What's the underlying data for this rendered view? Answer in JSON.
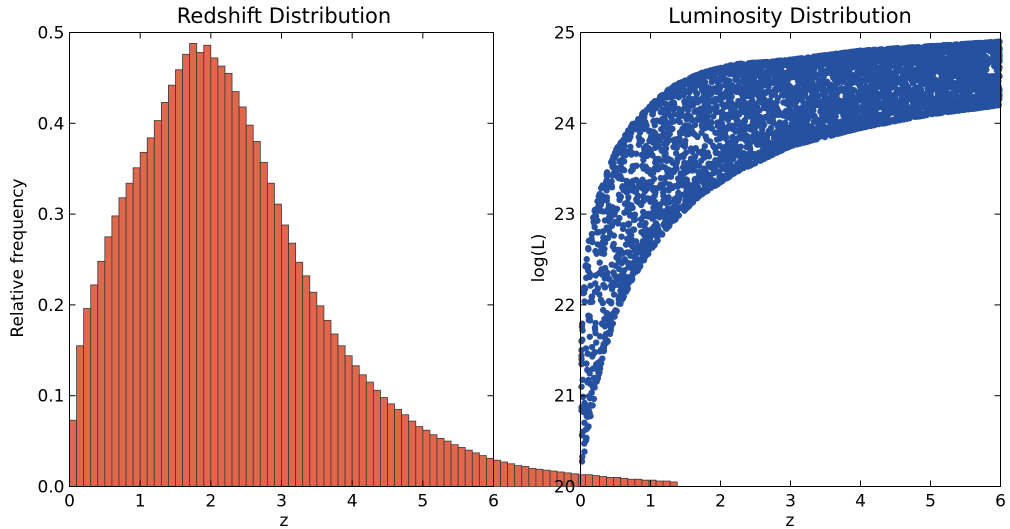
{
  "chart_data": [
    {
      "type": "bar",
      "title": "Redshift Distribution",
      "xlabel": "z",
      "ylabel": "Relative frequency",
      "xlim": [
        0,
        6
      ],
      "ylim": [
        0,
        0.5
      ],
      "xticks": [
        "0",
        "1",
        "2",
        "3",
        "4",
        "5",
        "6"
      ],
      "yticks": [
        "0.0",
        "0.1",
        "0.2",
        "0.3",
        "0.4",
        "0.5"
      ],
      "grid": false,
      "bar_color": "#E0674B",
      "bin_edges_start": 0,
      "bin_width": 0.1,
      "values": [
        0.073,
        0.155,
        0.196,
        0.222,
        0.248,
        0.275,
        0.298,
        0.318,
        0.334,
        0.351,
        0.368,
        0.384,
        0.403,
        0.423,
        0.442,
        0.459,
        0.476,
        0.488,
        0.478,
        0.486,
        0.472,
        0.463,
        0.455,
        0.435,
        0.418,
        0.398,
        0.38,
        0.357,
        0.334,
        0.311,
        0.288,
        0.268,
        0.247,
        0.232,
        0.214,
        0.199,
        0.183,
        0.168,
        0.155,
        0.144,
        0.133,
        0.123,
        0.115,
        0.106,
        0.098,
        0.091,
        0.085,
        0.079,
        0.072,
        0.066,
        0.062,
        0.057,
        0.053,
        0.05,
        0.046,
        0.043,
        0.04,
        0.037,
        0.034,
        0.031,
        0.029,
        0.027,
        0.025,
        0.023,
        0.022,
        0.02,
        0.019,
        0.018,
        0.017,
        0.016,
        0.015,
        0.014,
        0.013,
        0.013,
        0.012,
        0.011,
        0.01,
        0.01,
        0.009,
        0.008,
        0.008,
        0.007,
        0.007,
        0.006,
        0.006,
        0.005
      ]
    },
    {
      "type": "scatter",
      "title": "Luminosity Distribution",
      "xlabel": "z",
      "ylabel": "log(L)",
      "xlim": [
        0,
        6
      ],
      "ylim": [
        20,
        25
      ],
      "xticks": [
        "0",
        "1",
        "2",
        "3",
        "4",
        "5",
        "6"
      ],
      "yticks": [
        "20",
        "21",
        "22",
        "23",
        "24",
        "25"
      ],
      "grid": false,
      "point_color": "#2650A0",
      "upper_envelope": [
        [
          0.0,
          21.5
        ],
        [
          0.05,
          22.3
        ],
        [
          0.15,
          22.9
        ],
        [
          0.3,
          23.3
        ],
        [
          0.5,
          23.7
        ],
        [
          0.75,
          24.0
        ],
        [
          1.0,
          24.2
        ],
        [
          1.3,
          24.4
        ],
        [
          1.7,
          24.55
        ],
        [
          2.2,
          24.65
        ],
        [
          3.0,
          24.7
        ],
        [
          4.0,
          24.8
        ],
        [
          5.0,
          24.85
        ],
        [
          6.0,
          24.9
        ]
      ],
      "lower_envelope": [
        [
          0.0,
          20.1
        ],
        [
          0.1,
          20.6
        ],
        [
          0.25,
          21.2
        ],
        [
          0.5,
          21.9
        ],
        [
          0.75,
          22.3
        ],
        [
          1.0,
          22.6
        ],
        [
          1.3,
          22.9
        ],
        [
          1.7,
          23.2
        ],
        [
          2.2,
          23.45
        ],
        [
          3.0,
          23.75
        ],
        [
          4.0,
          23.95
        ],
        [
          5.0,
          24.1
        ],
        [
          6.0,
          24.2
        ]
      ]
    }
  ]
}
